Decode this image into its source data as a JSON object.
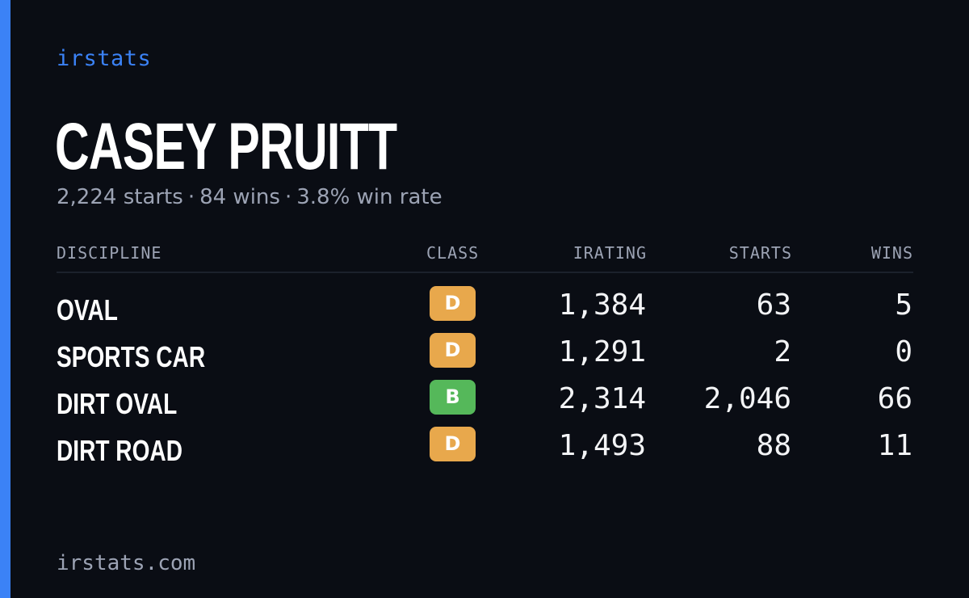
{
  "brand": "irstats",
  "driver": {
    "name": "CASEY PRUITT",
    "starts_text": "2,224 starts",
    "wins_text": "84 wins",
    "winrate_text": "3.8% win rate",
    "separator": "·"
  },
  "table": {
    "headers": {
      "discipline": "DISCIPLINE",
      "class": "CLASS",
      "irating": "IRATING",
      "starts": "STARTS",
      "wins": "WINS"
    },
    "rows": [
      {
        "discipline": "OVAL",
        "class": "D",
        "class_color": "#e8a84c",
        "irating": "1,384",
        "starts": "63",
        "wins": "5"
      },
      {
        "discipline": "SPORTS CAR",
        "class": "D",
        "class_color": "#e8a84c",
        "irating": "1,291",
        "starts": "2",
        "wins": "0"
      },
      {
        "discipline": "DIRT OVAL",
        "class": "B",
        "class_color": "#55b85a",
        "irating": "2,314",
        "starts": "2,046",
        "wins": "66"
      },
      {
        "discipline": "DIRT ROAD",
        "class": "D",
        "class_color": "#e8a84c",
        "irating": "1,493",
        "starts": "88",
        "wins": "11"
      }
    ]
  },
  "footer": "irstats.com",
  "colors": {
    "background": "#0a0d14",
    "accent": "#3b82f6",
    "muted": "#9ca3b4"
  }
}
